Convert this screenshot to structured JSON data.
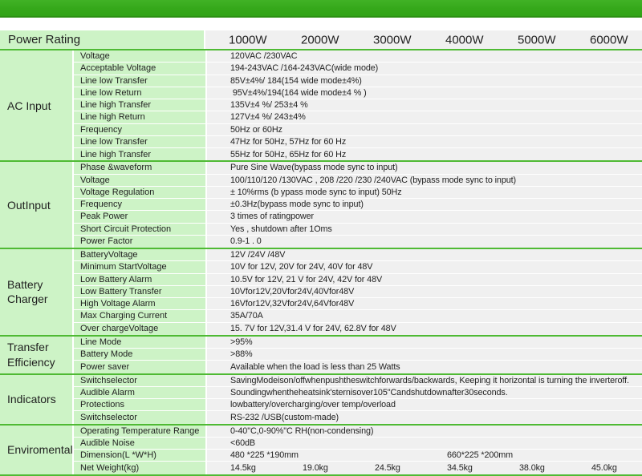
{
  "colors": {
    "banner_green": "#35a81a",
    "banner_edge_green": "#2c9013",
    "cell_light_green": "#cdf3c6",
    "separator_green": "#4fba34",
    "value_gray": "#f0f0f0",
    "text": "#1f1f1f"
  },
  "header": {
    "power_rating_label": "Power Rating",
    "columns": [
      "1000W",
      "2000W",
      "3000W",
      "4000W",
      "5000W",
      "6000W"
    ]
  },
  "sections": [
    {
      "name": "AC Input",
      "rows": [
        {
          "label": "Voltage",
          "cells": [
            {
              "col": 0,
              "text": "120VAC /230VAC"
            }
          ]
        },
        {
          "label": "Acceptable Voltage",
          "cells": [
            {
              "col": 0,
              "text": "194-243VAC /164-243VAC(wide mode)"
            }
          ]
        },
        {
          "label": "Line low Transfer",
          "cells": [
            {
              "col": 0,
              "text": "85V±4%/ 184(154 wide mode±4%)"
            }
          ]
        },
        {
          "label": "Line low Return",
          "cells": [
            {
              "col": 0,
              "text": " 95V±4%/194(164 wide mode±4 % )"
            }
          ]
        },
        {
          "label": "Line high Transfer",
          "cells": [
            {
              "col": 0,
              "text": "135V±4 %/ 253±4 %"
            }
          ]
        },
        {
          "label": "Line high Return",
          "cells": [
            {
              "col": 0,
              "text": "127V±4 %/ 243±4%"
            }
          ]
        },
        {
          "label": "Frequency",
          "cells": [
            {
              "col": 0,
              "text": "50Hz or 60Hz"
            }
          ]
        },
        {
          "label": "Line low Transfer",
          "cells": [
            {
              "col": 0,
              "text": "47Hz for 50Hz, 57Hz for 60 Hz"
            }
          ]
        },
        {
          "label": "Line high Transfer",
          "cells": [
            {
              "col": 0,
              "text": "55Hz for 50Hz, 65Hz for 60 Hz"
            }
          ]
        }
      ]
    },
    {
      "name": "OutInput",
      "rows": [
        {
          "label": "Phase &waveform",
          "cells": [
            {
              "col": 0,
              "text": "Pure Sine Wave(bypass mode sync to input)"
            }
          ]
        },
        {
          "label": "Voltage",
          "cells": [
            {
              "col": 0,
              "text": "100/110/120 /130VAC , 208 /220 /230 /240VAC (bypass mode sync to input)"
            }
          ]
        },
        {
          "label": "Voltage Regulation",
          "cells": [
            {
              "col": 0,
              "text": "± 10%rms (b ypass mode sync to input) 50Hz"
            }
          ]
        },
        {
          "label": "Frequency",
          "cells": [
            {
              "col": 0,
              "text": "±0.3Hz(bypass mode sync to input)"
            }
          ]
        },
        {
          "label": "Peak Power",
          "cells": [
            {
              "col": 0,
              "text": "3 times of ratingpower"
            }
          ]
        },
        {
          "label": "Short Circuit Protection",
          "cells": [
            {
              "col": 0,
              "text": "Yes , shutdown after 1Oms"
            }
          ]
        },
        {
          "label": "Power Factor",
          "cells": [
            {
              "col": 0,
              "text": "0.9-1 . 0"
            }
          ]
        }
      ]
    },
    {
      "name": "Battery Charger",
      "rows": [
        {
          "label": "BatteryVoltage",
          "cells": [
            {
              "col": 0,
              "text": "12V /24V /48V"
            }
          ]
        },
        {
          "label": "Minimum StartVoltage",
          "cells": [
            {
              "col": 0,
              "text": "10V for 12V, 20V for 24V, 40V for 48V"
            }
          ]
        },
        {
          "label": "Low Battery Alarm",
          "cells": [
            {
              "col": 0,
              "text": "10.5V for 12V, 21 V for 24V, 42V for 48V"
            }
          ]
        },
        {
          "label": "Low Battery Transfer",
          "cells": [
            {
              "col": 0,
              "text": "10Vfor12V,20Vfor24V,40Vfor48V"
            }
          ]
        },
        {
          "label": "High Voltage Alarm",
          "cells": [
            {
              "col": 0,
              "text": "16Vfor12V,32Vfor24V,64Vfor48V"
            }
          ]
        },
        {
          "label": "Max Charging Current",
          "cells": [
            {
              "col": 0,
              "text": "35A/70A"
            }
          ]
        },
        {
          "label": "Over chargeVoltage",
          "cells": [
            {
              "col": 0,
              "text": "15. 7V for 12V,31.4 V for 24V, 62.8V for 48V"
            }
          ]
        }
      ]
    },
    {
      "name": "Transfer Efficiency",
      "rows": [
        {
          "label": "Line Mode",
          "cells": [
            {
              "col": 0,
              "text": ">95%"
            }
          ]
        },
        {
          "label": "Battery Mode",
          "cells": [
            {
              "col": 0,
              "text": ">88%"
            }
          ]
        },
        {
          "label": "Power saver",
          "cells": [
            {
              "col": 0,
              "text": "Available when the load is less than 25 Watts"
            }
          ]
        }
      ]
    },
    {
      "name": "Indicators",
      "rows": [
        {
          "label": "Switchselector",
          "cells": [
            {
              "col": 0,
              "text": "SavingModeison/offwhenpushtheswitchforwards/backwards, Keeping it horizontal is turning the inverteroff."
            }
          ]
        },
        {
          "label": "Audible Alarm",
          "cells": [
            {
              "col": 0,
              "text": "Soundingwhentheheatsink'sternisover105\"Candshutdownafter30seconds."
            }
          ]
        },
        {
          "label": "Protections",
          "cells": [
            {
              "col": 0,
              "text": "lowbattery/overcharging/over temp/overload"
            }
          ]
        },
        {
          "label": "Switchselector",
          "cells": [
            {
              "col": 0,
              "text": "RS-232 /USB(custom-made)"
            }
          ]
        }
      ]
    },
    {
      "name": "Enviromental",
      "rows": [
        {
          "label": "Operating Temperature Range",
          "cells": [
            {
              "col": 0,
              "text": "0-40\"C,0-90%\"C RH(non-condensing)"
            }
          ]
        },
        {
          "label": "Audible Noise",
          "cells": [
            {
              "col": 0,
              "text": "<60dB"
            }
          ]
        },
        {
          "label": "Dimension(L *W*H)",
          "cells": [
            {
              "col": 0,
              "text": "480 *225 *190mm"
            },
            {
              "col": 3,
              "text": "660*225 *200mm"
            }
          ]
        },
        {
          "label": "Net Weight(kg)",
          "cells": [
            {
              "col": 0,
              "text": "14.5kg"
            },
            {
              "col": 1,
              "text": "19.0kg"
            },
            {
              "col": 2,
              "text": "24.5kg"
            },
            {
              "col": 3,
              "text": "34.5kg"
            },
            {
              "col": 4,
              "text": "38.0kg"
            },
            {
              "col": 5,
              "text": "45.0kg"
            }
          ]
        }
      ]
    }
  ]
}
